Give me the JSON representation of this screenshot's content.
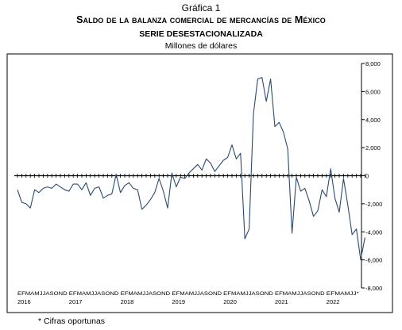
{
  "header": {
    "figure_label": "Gráfica 1",
    "title": "Saldo de la balanza comercial de mercancías de México",
    "subtitle": "SERIE DESESTACIONALIZADA",
    "units": "Millones de dólares"
  },
  "footnote": "* Cifras oportunas",
  "chart_data": {
    "type": "line",
    "title": "Saldo de la balanza comercial de mercancías de México",
    "subtitle": "SERIE DESESTACIONALIZADA",
    "ylabel": "Millones de dólares",
    "xlabel": "",
    "ylim": [
      -8000,
      8000
    ],
    "y_ticks": [
      8000,
      6000,
      4000,
      2000,
      0,
      -2000,
      -4000,
      -6000,
      -8000
    ],
    "y_tick_labels": [
      "8,000",
      "6,000",
      "4,000",
      "2,000",
      "0",
      "-2,000",
      "-4,000",
      "-6,000",
      "-8,000"
    ],
    "y_axis_side": "right",
    "grid": false,
    "month_labels": "EFMAMJJASOND",
    "years": [
      "2016",
      "2017",
      "2018",
      "2019",
      "2020",
      "2021",
      "2022"
    ],
    "last_year_month_labels": "EFMAMJJ*",
    "line_color": "#2b4a6f",
    "series": [
      {
        "values": [
          -1000,
          -1900,
          -2000,
          -2300,
          -1000,
          -1200,
          -900,
          -800,
          -900,
          -600,
          -800,
          -1000,
          -1100,
          -600,
          -600,
          -1000,
          -500,
          -1400,
          -900,
          -800,
          -1600,
          -1400,
          -1300,
          100,
          -1200,
          -700,
          -500,
          -900,
          -1000,
          -2400,
          -2100,
          -1700,
          -1200,
          -200,
          -1100,
          -2300,
          200,
          -800,
          -100,
          -200,
          200,
          500,
          800,
          400,
          1200,
          900,
          300,
          700,
          1100,
          1300,
          2200,
          1200,
          1600,
          -4500,
          -3800,
          4400,
          6900,
          7000,
          5300,
          6900,
          3500,
          3800,
          3100,
          1900,
          -4100,
          -100,
          -1100,
          -900,
          -1800,
          -2900,
          -2500,
          -1000,
          -1500,
          500,
          -1600,
          -2600,
          -200,
          -2100,
          -4200,
          -3800,
          -6000,
          -4400
        ]
      }
    ]
  }
}
